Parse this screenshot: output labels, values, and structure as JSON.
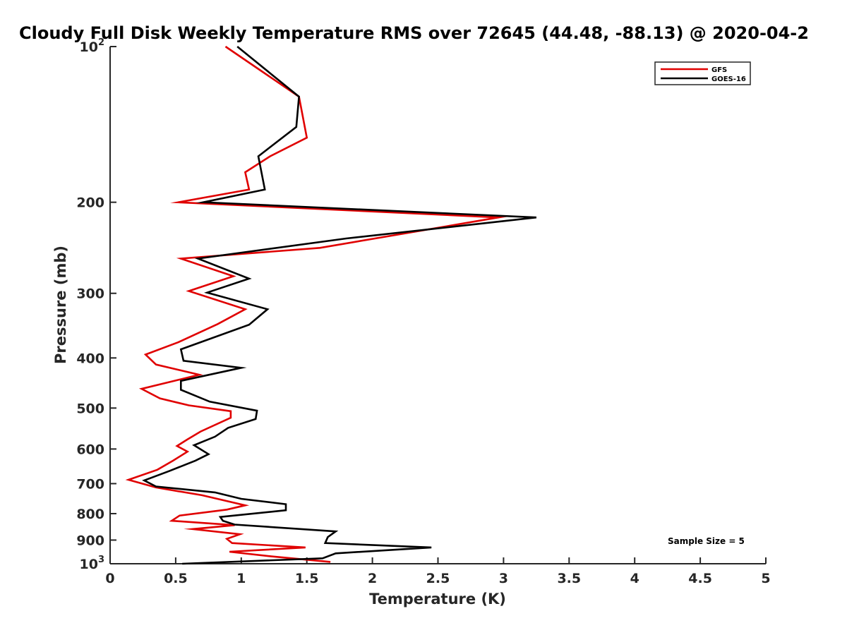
{
  "chart_data": {
    "type": "line",
    "orientation": "vertical-profile",
    "title": "Cloudy Full Disk Weekly Temperature RMS over 72645 (44.48, -88.13) @ 2020-04-2",
    "xlabel": "Temperature (K)",
    "ylabel": "Pressure (mb)",
    "xlim": [
      0,
      5
    ],
    "ylim": [
      100,
      1000
    ],
    "yscale": "log",
    "yreversed": true,
    "x_ticks": [
      "0",
      "0.5",
      "1",
      "1.5",
      "2",
      "2.5",
      "3",
      "3.5",
      "4",
      "4.5",
      "5"
    ],
    "y_ticks": [
      {
        "value": 100,
        "base": "10",
        "exp": "2"
      },
      {
        "value": 200,
        "label": "200"
      },
      {
        "value": 300,
        "label": "300"
      },
      {
        "value": 400,
        "label": "400"
      },
      {
        "value": 500,
        "label": "500"
      },
      {
        "value": 600,
        "label": "600"
      },
      {
        "value": 700,
        "label": "700"
      },
      {
        "value": 800,
        "label": "800"
      },
      {
        "value": 900,
        "label": "900"
      },
      {
        "value": 1000,
        "base": "10",
        "exp": "3"
      }
    ],
    "grid": false,
    "legend_position": "top-right",
    "annotation": "Sample Size = 5",
    "series": [
      {
        "name": "GFS",
        "color": "#e00000",
        "points": [
          [
            0.88,
            100
          ],
          [
            1.44,
            125
          ],
          [
            1.5,
            150
          ],
          [
            1.22,
            163
          ],
          [
            1.03,
            175
          ],
          [
            1.06,
            189
          ],
          [
            0.52,
            200
          ],
          [
            2.96,
            214
          ],
          [
            1.6,
            245
          ],
          [
            0.54,
            257
          ],
          [
            0.94,
            278
          ],
          [
            0.6,
            297
          ],
          [
            1.03,
            322
          ],
          [
            0.82,
            344
          ],
          [
            0.52,
            373
          ],
          [
            0.27,
            394
          ],
          [
            0.35,
            412
          ],
          [
            0.68,
            431
          ],
          [
            0.24,
            459
          ],
          [
            0.38,
            479
          ],
          [
            0.6,
            494
          ],
          [
            0.92,
            507
          ],
          [
            0.92,
            522
          ],
          [
            0.69,
            555
          ],
          [
            0.59,
            575
          ],
          [
            0.51,
            592
          ],
          [
            0.59,
            607
          ],
          [
            0.48,
            632
          ],
          [
            0.36,
            658
          ],
          [
            0.14,
            688
          ],
          [
            0.35,
            712
          ],
          [
            0.7,
            737
          ],
          [
            1.03,
            771
          ],
          [
            0.89,
            786
          ],
          [
            0.53,
            807
          ],
          [
            0.47,
            826
          ],
          [
            0.95,
            842
          ],
          [
            0.63,
            857
          ],
          [
            0.99,
            877
          ],
          [
            0.89,
            895
          ],
          [
            0.93,
            912
          ],
          [
            1.49,
            930
          ],
          [
            0.91,
            948
          ],
          [
            1.23,
            968
          ],
          [
            1.68,
            992
          ]
        ]
      },
      {
        "name": "GOES-16",
        "color": "#000000",
        "points": [
          [
            0.97,
            100
          ],
          [
            1.44,
            125
          ],
          [
            1.42,
            143
          ],
          [
            1.13,
            163
          ],
          [
            1.18,
            189
          ],
          [
            0.71,
            200
          ],
          [
            3.25,
            214
          ],
          [
            1.8,
            235
          ],
          [
            0.67,
            257
          ],
          [
            1.06,
            281
          ],
          [
            0.74,
            299
          ],
          [
            1.2,
            322
          ],
          [
            1.06,
            345
          ],
          [
            0.54,
            385
          ],
          [
            0.56,
            405
          ],
          [
            1.0,
            418
          ],
          [
            0.54,
            443
          ],
          [
            0.54,
            461
          ],
          [
            0.76,
            486
          ],
          [
            1.12,
            506
          ],
          [
            1.11,
            525
          ],
          [
            0.9,
            546
          ],
          [
            0.8,
            568
          ],
          [
            0.64,
            590
          ],
          [
            0.75,
            614
          ],
          [
            0.65,
            632
          ],
          [
            0.45,
            662
          ],
          [
            0.26,
            690
          ],
          [
            0.35,
            709
          ],
          [
            0.8,
            728
          ],
          [
            1.0,
            749
          ],
          [
            1.34,
            767
          ],
          [
            1.34,
            788
          ],
          [
            0.84,
            812
          ],
          [
            0.86,
            826
          ],
          [
            0.95,
            840
          ],
          [
            1.72,
            866
          ],
          [
            1.66,
            888
          ],
          [
            1.64,
            912
          ],
          [
            2.45,
            930
          ],
          [
            1.72,
            955
          ],
          [
            1.62,
            976
          ],
          [
            0.55,
            1000
          ]
        ]
      }
    ]
  }
}
